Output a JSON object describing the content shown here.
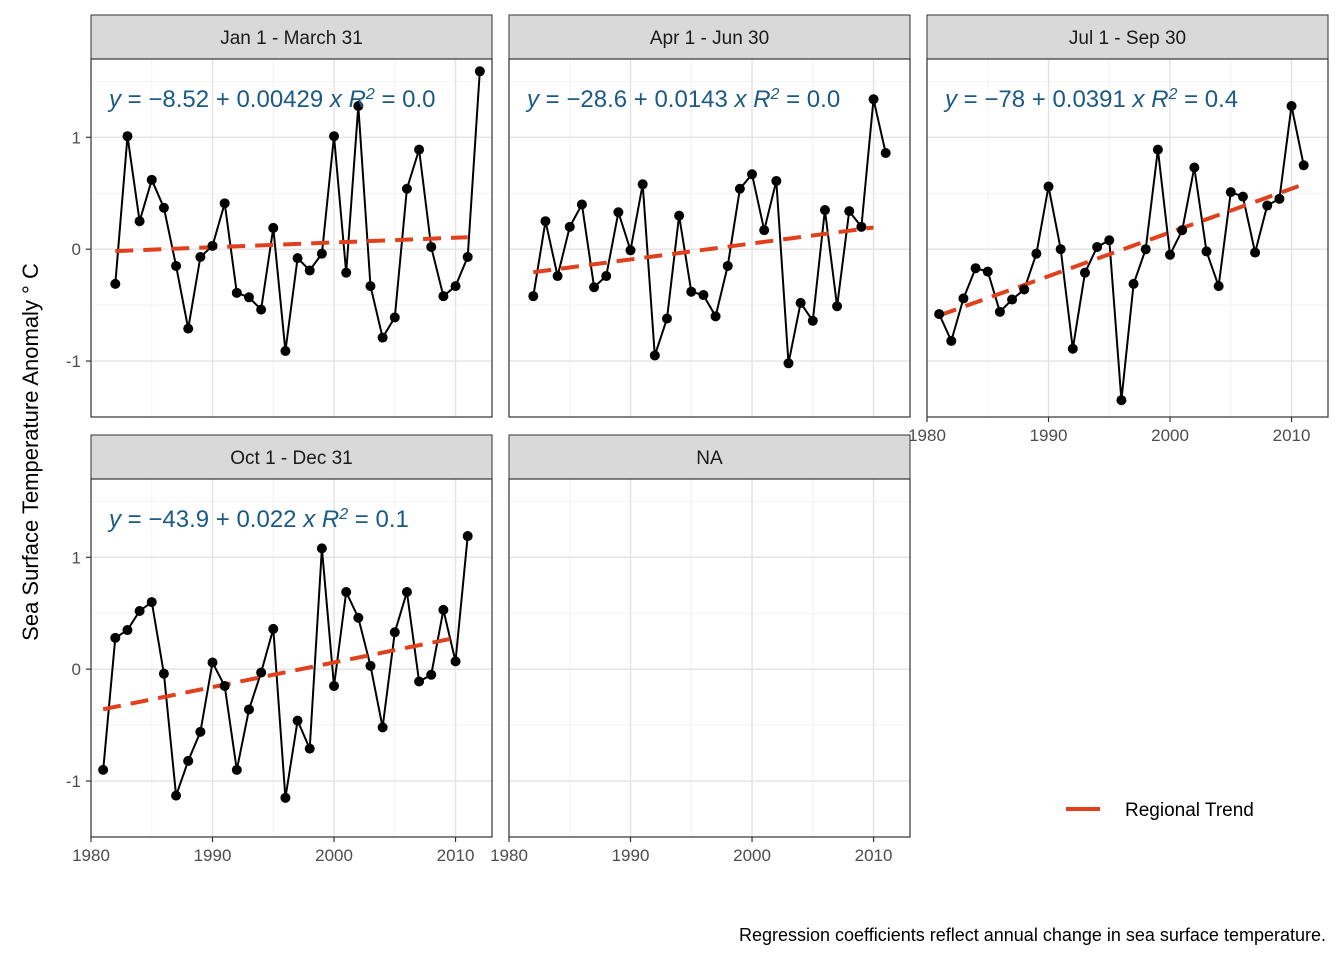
{
  "chart_data": {
    "type": "line",
    "ylabel": "Sea Surface Temperature Anomaly ° C",
    "caption": "Regression coefficients reflect annual change in sea surface temperature.",
    "xlim": [
      1980,
      2013
    ],
    "xticks": [
      1980,
      1990,
      2000,
      2010
    ],
    "ylim": [
      -1.5,
      1.7
    ],
    "yticks": [
      -1,
      0,
      1
    ],
    "grid": true,
    "legend": {
      "position": "bottom-right",
      "label": "Regional Trend",
      "color": "#e0401c"
    },
    "colors": {
      "line": "#000000",
      "trend": "#e0401c",
      "equation": "#1a5a85",
      "strip": "#d9d9d9"
    },
    "panels": [
      {
        "strip": "Jan 1 - March 31",
        "equation": {
          "y": "y",
          "intercept": "−8.52",
          "slope": "0.00429",
          "x": "x",
          "r2_label": "R",
          "r2_sup": "2",
          "r2_value": "= 0.0"
        },
        "x": [
          1982,
          1983,
          1984,
          1985,
          1986,
          1987,
          1988,
          1989,
          1990,
          1991,
          1992,
          1993,
          1994,
          1995,
          1996,
          1997,
          1998,
          1999,
          2000,
          2001,
          2002,
          2003,
          2004,
          2005,
          2006,
          2007,
          2008,
          2009,
          2010,
          2011,
          2012
        ],
        "y": [
          -0.31,
          1.01,
          0.25,
          0.62,
          0.37,
          -0.15,
          -0.71,
          -0.07,
          0.03,
          0.41,
          -0.39,
          -0.43,
          -0.54,
          0.19,
          -0.91,
          -0.08,
          -0.19,
          -0.04,
          1.01,
          -0.21,
          1.28,
          -0.33,
          -0.79,
          -0.61,
          0.54,
          0.89,
          0.02,
          -0.42,
          -0.33,
          -0.07,
          1.59
        ],
        "trend": [
          [
            1982,
            -0.017
          ],
          [
            2011,
            0.107
          ]
        ]
      },
      {
        "strip": "Apr 1 - Jun 30",
        "equation": {
          "y": "y",
          "intercept": "−28.6",
          "slope": "0.0143",
          "x": "x",
          "r2_label": "R",
          "r2_sup": "2",
          "r2_value": "= 0.0"
        },
        "x": [
          1982,
          1983,
          1984,
          1985,
          1986,
          1987,
          1988,
          1989,
          1990,
          1991,
          1992,
          1993,
          1994,
          1995,
          1996,
          1997,
          1998,
          1999,
          2000,
          2001,
          2002,
          2003,
          2004,
          2005,
          2006,
          2007,
          2008,
          2009,
          2010,
          2011
        ],
        "y": [
          -0.42,
          0.25,
          -0.24,
          0.2,
          0.4,
          -0.34,
          -0.24,
          0.33,
          -0.01,
          0.58,
          -0.95,
          -0.62,
          0.3,
          -0.38,
          -0.41,
          -0.6,
          -0.15,
          0.54,
          0.67,
          0.17,
          0.61,
          -1.02,
          -0.48,
          -0.64,
          0.35,
          -0.51,
          0.34,
          0.2,
          1.34,
          0.86
        ],
        "trend": [
          [
            1982,
            -0.206
          ],
          [
            2010,
            0.194
          ]
        ]
      },
      {
        "strip": "Jul 1 - Sep 30",
        "equation": {
          "y": "y",
          "intercept": "−78",
          "slope": "0.0391",
          "x": "x",
          "r2_label": "R",
          "r2_sup": "2",
          "r2_value": "= 0.4"
        },
        "x": [
          1981,
          1982,
          1983,
          1984,
          1985,
          1986,
          1987,
          1988,
          1989,
          1990,
          1991,
          1992,
          1993,
          1994,
          1995,
          1996,
          1997,
          1998,
          1999,
          2000,
          2001,
          2002,
          2003,
          2004,
          2005,
          2006,
          2007,
          2008,
          2009,
          2010,
          2011
        ],
        "y": [
          -0.58,
          -0.82,
          -0.44,
          -0.17,
          -0.2,
          -0.56,
          -0.45,
          -0.36,
          -0.04,
          0.56,
          0.0,
          -0.89,
          -0.21,
          0.02,
          0.08,
          -1.35,
          -0.31,
          0.0,
          0.89,
          -0.05,
          0.17,
          0.73,
          -0.02,
          -0.33,
          0.51,
          0.47,
          -0.03,
          0.39,
          0.45,
          1.28,
          0.75
        ],
        "trend": [
          [
            1981,
            -0.593
          ],
          [
            2011,
            0.58
          ]
        ]
      },
      {
        "strip": "Oct 1 - Dec 31",
        "equation": {
          "y": "y",
          "intercept": "−43.9",
          "slope": "0.022",
          "x": "x",
          "r2_label": "R",
          "r2_sup": "2",
          "r2_value": "= 0.1"
        },
        "x": [
          1981,
          1982,
          1983,
          1984,
          1985,
          1986,
          1987,
          1988,
          1989,
          1990,
          1991,
          1992,
          1993,
          1994,
          1995,
          1996,
          1997,
          1998,
          1999,
          2000,
          2001,
          2002,
          2003,
          2004,
          2005,
          2006,
          2007,
          2008,
          2009,
          2010,
          2011
        ],
        "y": [
          -0.9,
          0.28,
          0.35,
          0.52,
          0.6,
          -0.04,
          -1.13,
          -0.82,
          -0.56,
          0.06,
          -0.15,
          -0.9,
          -0.36,
          -0.03,
          0.36,
          -1.15,
          -0.46,
          -0.71,
          1.08,
          -0.15,
          0.69,
          0.46,
          0.03,
          -0.52,
          0.33,
          0.69,
          -0.11,
          -0.05,
          0.53,
          0.07,
          1.19
        ],
        "trend": [
          [
            1981,
            -0.358
          ],
          [
            2010,
            0.28
          ]
        ]
      },
      {
        "strip": "NA",
        "equation": null,
        "x": [],
        "y": [],
        "trend": []
      }
    ]
  }
}
